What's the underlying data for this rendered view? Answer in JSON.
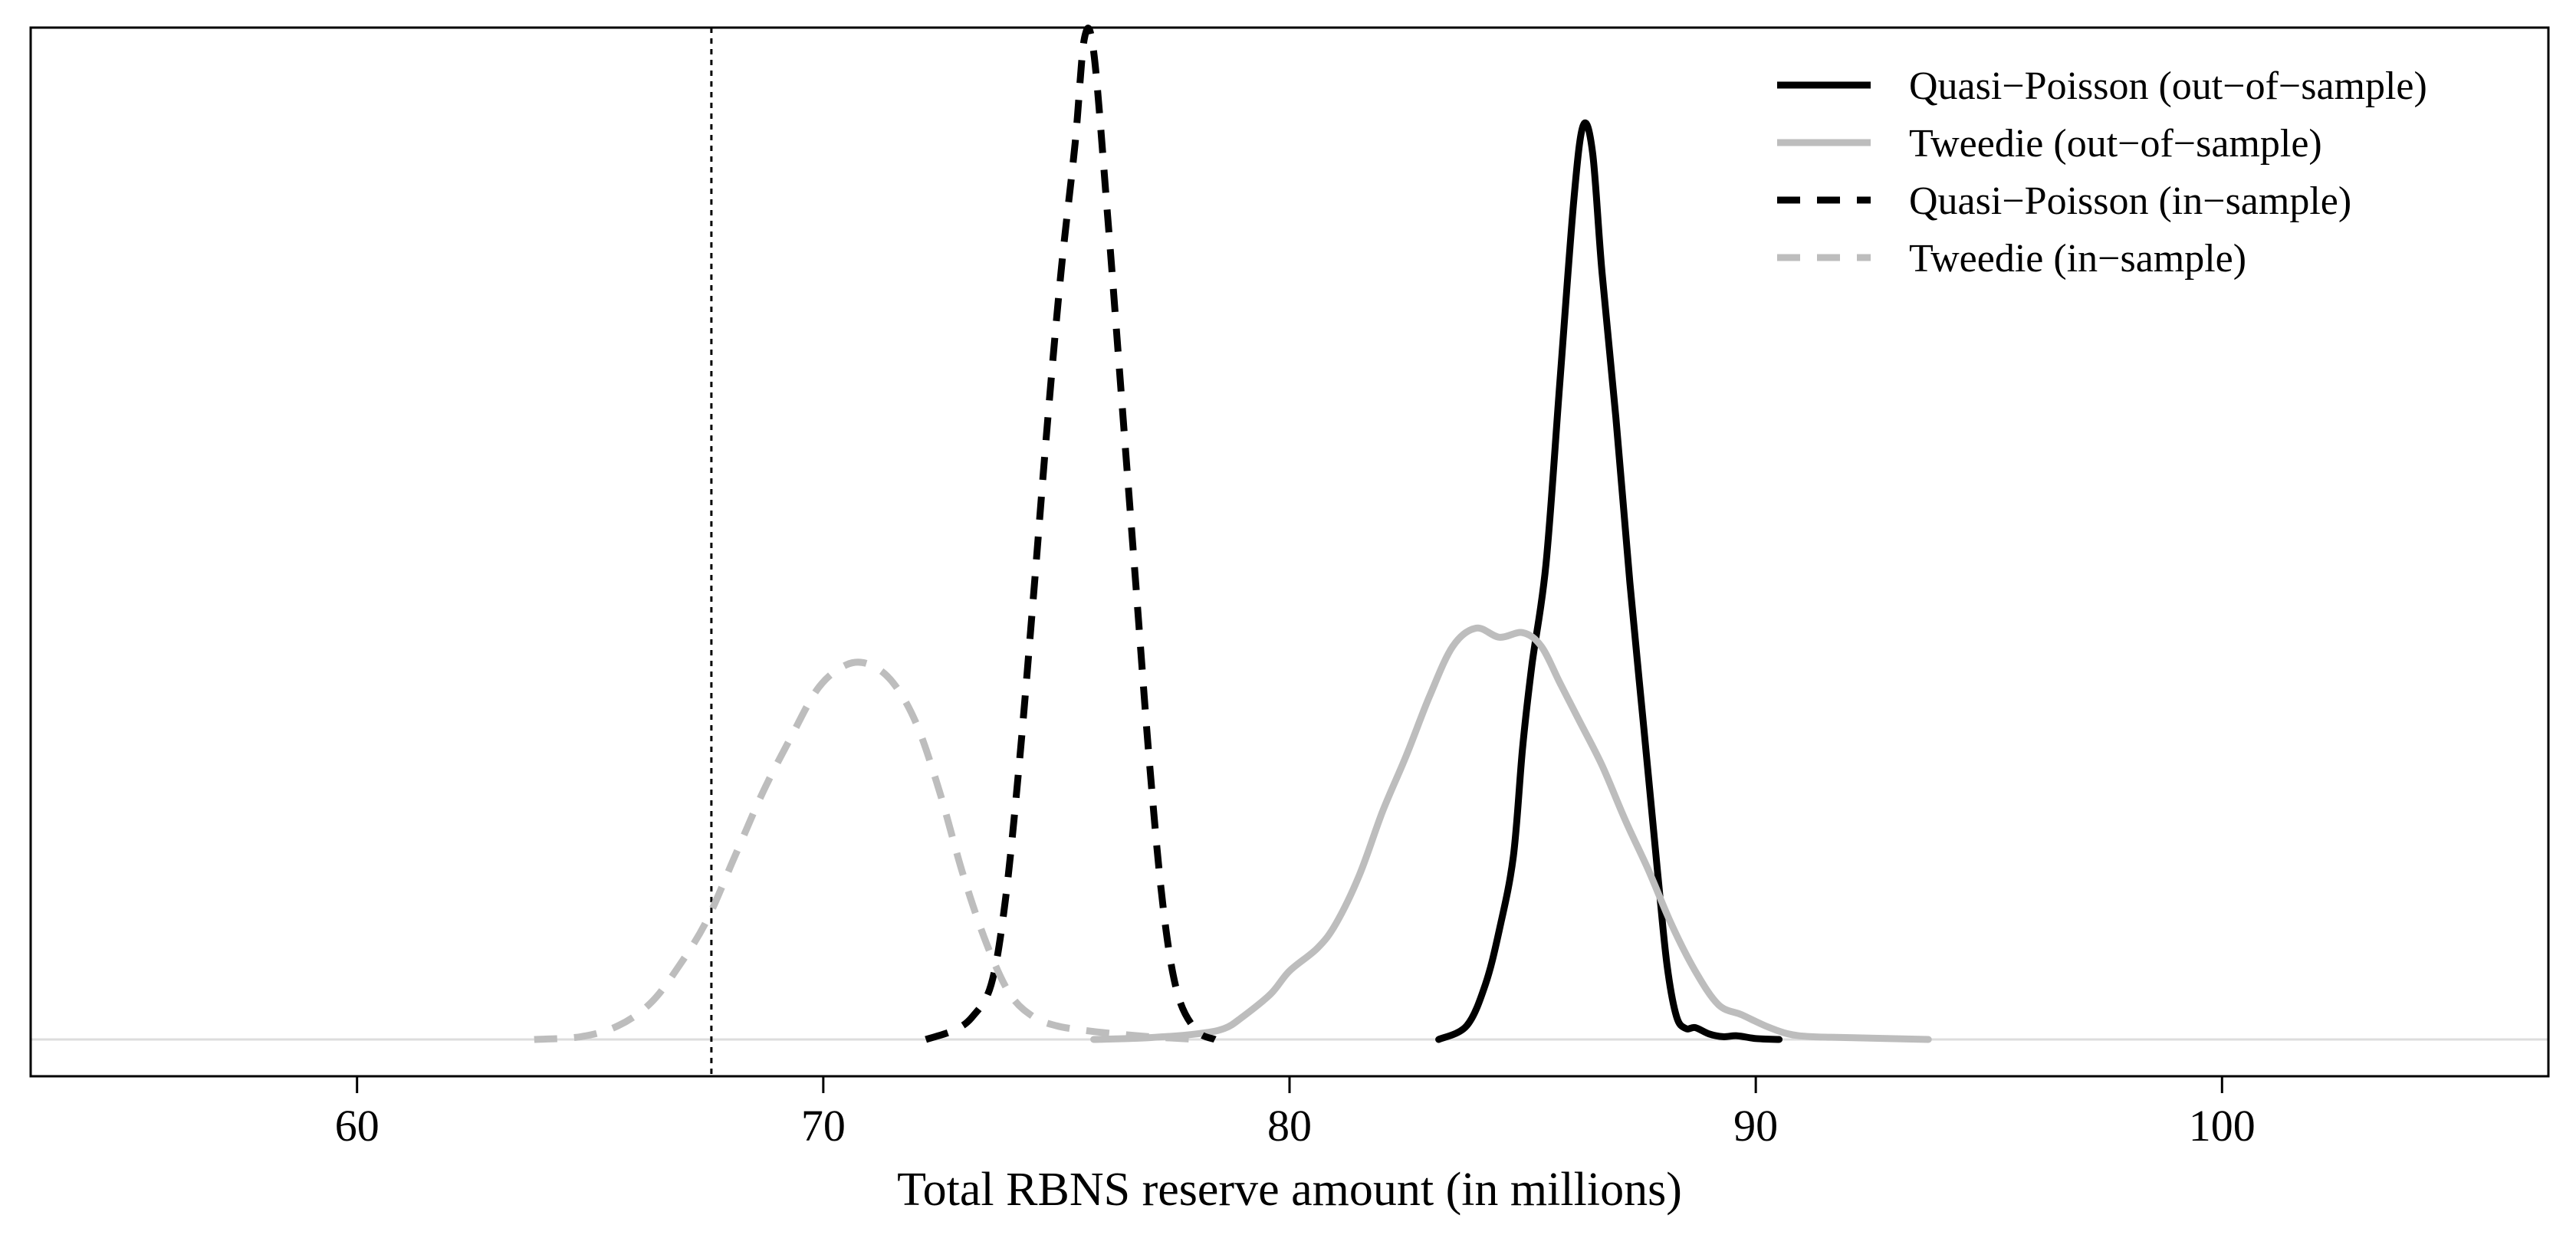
{
  "chart_data": {
    "type": "line",
    "title": "",
    "xlabel": "Total RBNS reserve amount (in millions)",
    "ylabel": "",
    "xlim": [
      53,
      107
    ],
    "ylim": [
      0,
      1.07
    ],
    "x_ticks": [
      60,
      70,
      80,
      90,
      100
    ],
    "x_tick_labels": [
      "60",
      "70",
      "80",
      "90",
      "100"
    ],
    "y_axis_visible": false,
    "grid": false,
    "legend_position": "top-right",
    "reference_line": {
      "x": 67.6,
      "style": "dotted",
      "color": "#000000"
    },
    "baseline": {
      "y": 0,
      "color": "#dddddd"
    },
    "series": [
      {
        "name": "Quasi−Poisson (out−of−sample)",
        "color": "#000000",
        "dash": "solid",
        "x": [
          83.2,
          83.8,
          84.2,
          84.5,
          84.8,
          85.0,
          85.2,
          85.5,
          85.8,
          86.1,
          86.3,
          86.5,
          86.7,
          87.0,
          87.3,
          87.6,
          87.9,
          88.1,
          88.3,
          88.5,
          88.7,
          89.0,
          89.3,
          89.6,
          90.0,
          90.5
        ],
        "y": [
          0.0,
          0.015,
          0.06,
          0.12,
          0.2,
          0.32,
          0.41,
          0.52,
          0.72,
          0.92,
          1.0,
          0.97,
          0.84,
          0.68,
          0.5,
          0.34,
          0.18,
          0.08,
          0.025,
          0.012,
          0.013,
          0.006,
          0.003,
          0.004,
          0.001,
          0.0
        ]
      },
      {
        "name": "Tweedie (out−of−sample)",
        "color": "#bdbdbd",
        "dash": "solid",
        "x": [
          75.8,
          77.0,
          78.0,
          78.6,
          79.0,
          79.6,
          80.0,
          80.6,
          81.0,
          81.5,
          82.0,
          82.5,
          83.0,
          83.5,
          84.0,
          84.5,
          85.0,
          85.4,
          85.8,
          86.2,
          86.7,
          87.2,
          87.7,
          88.2,
          88.7,
          89.2,
          89.7,
          90.2,
          90.7,
          91.2,
          92.0,
          93.7
        ],
        "y": [
          0.0,
          0.002,
          0.006,
          0.012,
          0.025,
          0.05,
          0.075,
          0.1,
          0.127,
          0.18,
          0.25,
          0.31,
          0.375,
          0.43,
          0.45,
          0.44,
          0.445,
          0.43,
          0.39,
          0.35,
          0.3,
          0.24,
          0.185,
          0.125,
          0.075,
          0.038,
          0.027,
          0.015,
          0.006,
          0.003,
          0.002,
          0.0
        ]
      },
      {
        "name": "Quasi−Poisson (in−sample)",
        "color": "#000000",
        "dash": "dashed",
        "x": [
          72.2,
          72.8,
          73.2,
          73.6,
          73.9,
          74.2,
          74.5,
          74.8,
          75.1,
          75.4,
          75.6,
          75.8,
          76.1,
          76.4,
          76.7,
          77.0,
          77.3,
          77.6,
          78.0,
          78.4
        ],
        "y": [
          0.0,
          0.01,
          0.025,
          0.06,
          0.15,
          0.3,
          0.48,
          0.67,
          0.84,
          0.98,
          1.095,
          1.08,
          0.9,
          0.7,
          0.5,
          0.3,
          0.14,
          0.05,
          0.01,
          0.0
        ]
      },
      {
        "name": "Tweedie (in−sample)",
        "color": "#bdbdbd",
        "dash": "dashed",
        "x": [
          63.8,
          64.8,
          65.6,
          66.3,
          66.9,
          67.5,
          68.1,
          68.7,
          69.3,
          69.9,
          70.5,
          71.0,
          71.5,
          72.0,
          72.5,
          73.0,
          73.5,
          74.0,
          74.5,
          75.0,
          75.6,
          76.3,
          77.0,
          78.0
        ],
        "y": [
          0.0,
          0.003,
          0.015,
          0.04,
          0.08,
          0.13,
          0.2,
          0.27,
          0.33,
          0.385,
          0.41,
          0.41,
          0.39,
          0.345,
          0.27,
          0.18,
          0.105,
          0.05,
          0.025,
          0.015,
          0.01,
          0.006,
          0.003,
          0.0
        ]
      }
    ]
  }
}
